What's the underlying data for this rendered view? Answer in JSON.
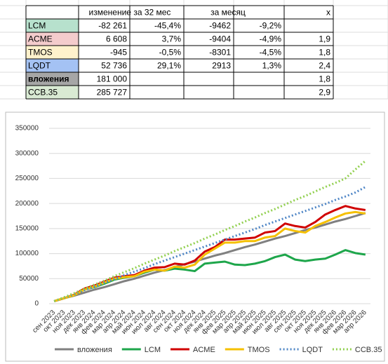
{
  "table": {
    "header": [
      null,
      "изменение за 32 мес",
      null,
      "за месяц",
      null,
      "x"
    ],
    "rows": [
      [
        "LCM",
        "-82 261",
        "-45,4%",
        "-9462",
        "-9,2%",
        null
      ],
      [
        "ACME",
        "6 608",
        "3,7%",
        "-9404",
        "-4,9%",
        "1,9"
      ],
      [
        "TMOS",
        "-945",
        "-0,5%",
        "-8301",
        "-4,5%",
        "1,8"
      ],
      [
        "LQDT",
        "52 736",
        "29,1%",
        "2913",
        "1,3%",
        "2,4"
      ],
      [
        "вложения",
        "181 000",
        null,
        null,
        null,
        "1,8"
      ],
      [
        "ССВ.35",
        "285 727",
        null,
        null,
        null,
        "2,9"
      ]
    ]
  },
  "chart_data": {
    "type": "line",
    "categories": [
      "сен 2023",
      "окт 2023",
      "ноя 2023",
      "дек 2023",
      "янв 2024",
      "фев 2024",
      "мар 2024",
      "апр 2024",
      "май 2024",
      "июн 2024",
      "июл 2024",
      "авг 2024",
      "сен 2024",
      "окт 2024",
      "ноя 2024",
      "дек 2024",
      "янв 2025",
      "фев 2025",
      "мар 2025",
      "апр 2025",
      "май 2025",
      "июн 2025",
      "июл 2025",
      "авг 2025",
      "сен 2025",
      "окт 2025",
      "ноя 2025",
      "дек 2025",
      "янв 2026",
      "фев 2026",
      "мар 2026",
      "апр 2026"
    ],
    "ylim": [
      0,
      350000
    ],
    "yticks": [
      0,
      50000,
      100000,
      150000,
      200000,
      250000,
      300000,
      350000
    ],
    "grid": true,
    "legend": "bottom",
    "series": [
      {
        "name": "вложения",
        "color": "#808080",
        "dash": false,
        "values": [
          5000,
          11000,
          16000,
          22000,
          28000,
          33000,
          39000,
          45000,
          50000,
          56000,
          62000,
          67000,
          73000,
          79000,
          84000,
          90000,
          96000,
          101000,
          107000,
          113000,
          118000,
          124000,
          130000,
          135000,
          141000,
          147000,
          152000,
          158000,
          164000,
          169000,
          175000,
          181000
        ]
      },
      {
        "name": "LCM",
        "color": "#1ea64b",
        "dash": false,
        "values": [
          5000,
          11000,
          17000,
          28000,
          33000,
          40000,
          48000,
          52000,
          55000,
          62000,
          68000,
          66000,
          70000,
          68000,
          65000,
          80000,
          82000,
          84000,
          78000,
          77000,
          80000,
          85000,
          93000,
          98000,
          88000,
          85000,
          88000,
          90000,
          98000,
          107000,
          101000,
          98000
        ]
      },
      {
        "name": "ACME",
        "color": "#d00000",
        "dash": false,
        "values": [
          5000,
          11000,
          18000,
          30000,
          36000,
          44000,
          52000,
          55000,
          57000,
          66000,
          72000,
          73000,
          80000,
          78000,
          86000,
          104000,
          113000,
          128000,
          128000,
          130000,
          132000,
          142000,
          145000,
          160000,
          155000,
          152000,
          163000,
          178000,
          187000,
          195000,
          190000,
          187000
        ]
      },
      {
        "name": "TMOS",
        "color": "#f5c000",
        "dash": false,
        "values": [
          5000,
          11000,
          17000,
          28000,
          34000,
          42000,
          50000,
          53000,
          55000,
          64000,
          68000,
          66000,
          74000,
          72000,
          78000,
          98000,
          110000,
          122000,
          122000,
          125000,
          125000,
          132000,
          135000,
          150000,
          145000,
          142000,
          155000,
          163000,
          172000,
          180000,
          183000,
          180000
        ]
      },
      {
        "name": "LQDT",
        "color": "#4f86c6",
        "dash": true,
        "values": [
          5000,
          12000,
          19000,
          27000,
          34000,
          42000,
          49000,
          57000,
          64000,
          71000,
          79000,
          86000,
          93000,
          100000,
          107000,
          114000,
          121000,
          128000,
          135000,
          142000,
          149000,
          157000,
          164000,
          171000,
          178000,
          185000,
          192000,
          199000,
          207000,
          214000,
          222000,
          233000
        ]
      },
      {
        "name": "ССВ.35",
        "color": "#92d050",
        "dash": true,
        "values": [
          5000,
          13000,
          21000,
          30000,
          38000,
          46000,
          55000,
          63000,
          71000,
          80000,
          88000,
          96000,
          105000,
          113000,
          121000,
          130000,
          138000,
          147000,
          155000,
          164000,
          172000,
          181000,
          189000,
          198000,
          207000,
          215000,
          224000,
          233000,
          241000,
          250000,
          268000,
          285000
        ]
      }
    ]
  }
}
